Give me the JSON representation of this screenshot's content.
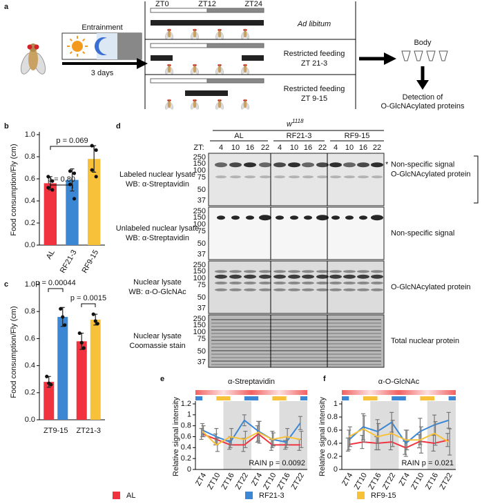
{
  "panel_labels": [
    "a",
    "b",
    "c",
    "d",
    "e",
    "f"
  ],
  "panel_a": {
    "entrainment": "Entrainment",
    "duration": "3 days",
    "zt_labels": [
      "ZT0",
      "ZT12",
      "ZT24"
    ],
    "conditions": [
      [
        "Ad libitum"
      ],
      [
        "Restricted feeding",
        "ZT 21-3"
      ],
      [
        "Restricted feeding",
        "ZT 9-15"
      ]
    ],
    "body": "Body",
    "detection": [
      "Detection of",
      "O-GlcNAcylated proteins"
    ]
  },
  "panel_d": {
    "genotype": "w",
    "genotype_sup": "1118",
    "groups": [
      "AL",
      "RF21-3",
      "RF9-15"
    ],
    "zt_label": "ZT:",
    "lanes": [
      "4",
      "10",
      "16",
      "22",
      "4",
      "10",
      "16",
      "22",
      "4",
      "10",
      "16",
      "22"
    ],
    "markers": [
      250,
      150,
      100,
      75,
      50,
      37
    ],
    "blots": [
      {
        "left": [
          "Labeled nuclear lysate",
          "WB: α-Streptavidin"
        ],
        "right": [
          "Non-specific signal",
          "O-GlcNAcylated protein"
        ],
        "asterisk": "*"
      },
      {
        "left": [
          "Unlabeled nuclear lysate",
          "WB: α-Streptavidin"
        ],
        "right": [
          "Non-specific signal"
        ]
      },
      {
        "left": [
          "Nuclear lysate",
          "WB: α-O-GlcNAc"
        ],
        "right": [
          "O-GlcNAcylated protein"
        ]
      },
      {
        "left": [
          "Nuclear lysate",
          "Coomassie stain"
        ],
        "right": [
          "Total nuclear protein"
        ]
      }
    ]
  },
  "chart_data": [
    {
      "type": "bar",
      "ylabel": "Food consumption/Fly (cm)",
      "categories": [
        "AL",
        "RF21-3",
        "RF9-15"
      ],
      "values": [
        0.56,
        0.59,
        0.78
      ],
      "errors": [
        0.06,
        0.1,
        0.12
      ],
      "points": [
        [
          0.62,
          0.58,
          0.52,
          0.5
        ],
        [
          0.67,
          0.65,
          0.55,
          0.42
        ],
        [
          0.9,
          0.86,
          0.68,
          0.62
        ]
      ],
      "colors": [
        "#f0333f",
        "#3b87d4",
        "#f7c13a"
      ],
      "ylim": [
        0,
        1
      ],
      "yticks": [
        {
          "value": 0,
          "label": "0.0"
        },
        0.2,
        0.4,
        0.6,
        0.8,
        {
          "value": 1,
          "label": "1.0"
        }
      ],
      "annotations": [
        "p = 0.80",
        "p = 0.069"
      ]
    },
    {
      "type": "grouped_bar",
      "ylabel": "Food consumption/Fly (cm)",
      "categories": [
        "ZT9-15",
        "ZT21-3"
      ],
      "series": [
        {
          "name": "AL",
          "color": "#f0333f",
          "values": [
            0.28,
            0.58
          ],
          "errors": [
            0.04,
            0.06
          ],
          "points": [
            [
              0.32,
              0.27,
              0.26
            ],
            [
              0.64,
              0.57,
              0.53
            ]
          ]
        },
        {
          "name": "RF21-3",
          "color": "#3b87d4",
          "values": [
            0.76,
            null
          ],
          "errors": [
            0.07,
            null
          ],
          "points": [
            [
              0.82,
              0.76,
              0.7
            ],
            null
          ]
        },
        {
          "name": "RF9-15",
          "color": "#f7c13a",
          "values": [
            null,
            0.74
          ],
          "errors": [
            null,
            0.04
          ],
          "points": [
            null,
            [
              0.78,
              0.73,
              0.71
            ]
          ]
        }
      ],
      "ylim": [
        0,
        1
      ],
      "yticks": [
        {
          "value": 0,
          "label": "0.0"
        },
        0.2,
        0.4,
        0.6,
        0.8,
        {
          "value": 1,
          "label": "1.0"
        }
      ],
      "annotations": [
        "p = 0.00044",
        "p = 0.0015"
      ]
    },
    {
      "type": "line",
      "title": "α-Streptavidin",
      "ylabel": "Relative signal intensity",
      "annotation": "RAIN p = 0.0092",
      "categories": [
        "ZT4",
        "ZT10",
        "ZT16",
        "ZT22",
        "ZT4",
        "ZT10",
        "ZT16",
        "ZT22"
      ],
      "series": [
        {
          "name": "AL",
          "color": "#f0333f",
          "values": [
            0.65,
            0.55,
            0.45,
            0.45,
            0.65,
            0.45,
            0.45,
            0.45
          ],
          "errors": [
            0.1,
            0.1,
            0.08,
            0.12,
            0.15,
            0.1,
            0.08,
            0.1
          ]
        },
        {
          "name": "RF21-3",
          "color": "#3b87d4",
          "values": [
            0.72,
            0.6,
            0.5,
            0.9,
            0.7,
            0.55,
            0.5,
            0.85
          ],
          "errors": [
            0.12,
            0.15,
            0.1,
            0.1,
            0.18,
            0.15,
            0.1,
            0.12
          ]
        },
        {
          "name": "RF9-15",
          "color": "#f7c13a",
          "values": [
            0.7,
            0.45,
            0.6,
            0.55,
            0.68,
            0.55,
            0.6,
            0.55
          ],
          "errors": [
            0.1,
            0.12,
            0.15,
            0.15,
            0.2,
            0.12,
            0.15,
            0.15
          ]
        }
      ],
      "ylim": [
        0,
        1.2
      ],
      "yticks": [
        0,
        0.2,
        0.4,
        0.6,
        0.8,
        1,
        1.2
      ]
    },
    {
      "type": "line",
      "title": "α-O-GlcNAc",
      "ylabel": "Relative signal intensity",
      "annotation": "RAIN p = 0.021",
      "categories": [
        "ZT4",
        "ZT10",
        "ZT16",
        "ZT22",
        "ZT4",
        "ZT10",
        "ZT16",
        "ZT22"
      ],
      "series": [
        {
          "name": "AL",
          "color": "#f0333f",
          "values": [
            0.38,
            0.42,
            0.4,
            0.42,
            0.33,
            0.43,
            0.4,
            0.45
          ],
          "errors": [
            0.1,
            0.1,
            0.1,
            0.12,
            0.1,
            0.1,
            0.12,
            0.1
          ]
        },
        {
          "name": "RF21-3",
          "color": "#3b87d4",
          "values": [
            0.45,
            0.65,
            0.58,
            0.72,
            0.4,
            0.58,
            0.68,
            0.75
          ],
          "errors": [
            0.15,
            0.2,
            0.18,
            0.15,
            0.2,
            0.2,
            0.15,
            0.12
          ]
        },
        {
          "name": "RF9-15",
          "color": "#f7c13a",
          "values": [
            0.5,
            0.62,
            0.5,
            0.55,
            0.45,
            0.45,
            0.55,
            0.42
          ],
          "errors": [
            0.15,
            0.2,
            0.2,
            0.2,
            0.15,
            0.2,
            0.18,
            0.2
          ]
        }
      ],
      "ylim": [
        0,
        1
      ],
      "yticks": [
        0,
        0.2,
        0.4,
        0.6,
        0.8,
        1
      ]
    }
  ]
}
